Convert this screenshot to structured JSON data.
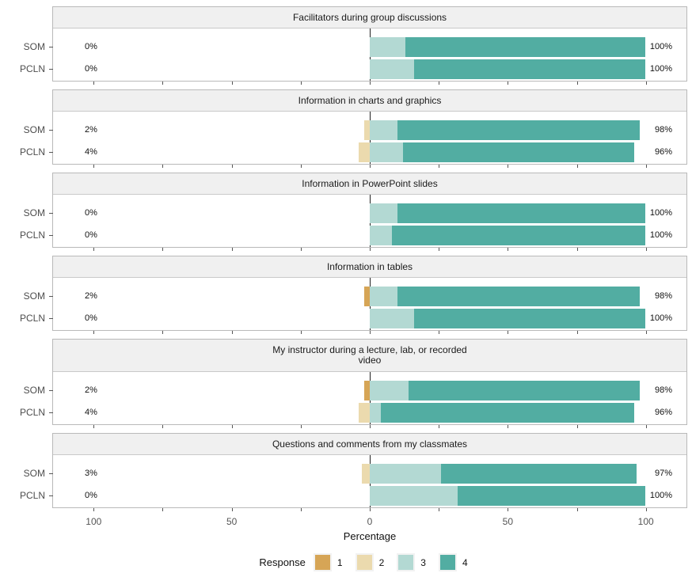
{
  "chart_data": {
    "type": "bar",
    "subtype": "diverging-stacked-likert",
    "orientation": "horizontal",
    "xlabel": "Percentage",
    "xlim": [
      -115,
      115
    ],
    "x_major_ticks": [
      -100,
      -50,
      0,
      50,
      100
    ],
    "x_major_tick_labels": [
      "100",
      "50",
      "0",
      "50",
      "100"
    ],
    "x_minor_tick_step": 25,
    "grid": "off",
    "negative_responses": [
      "1",
      "2"
    ],
    "positive_responses": [
      "3",
      "4"
    ],
    "legend": {
      "title": "Response",
      "position": "bottom",
      "items": [
        {
          "label": "1",
          "color": "#d6a556"
        },
        {
          "label": "2",
          "color": "#ebdaae"
        },
        {
          "label": "3",
          "color": "#b3d9d3"
        },
        {
          "label": "4",
          "color": "#52ada2"
        }
      ]
    },
    "panels": [
      {
        "title": "Facilitators during group discussions",
        "rows": [
          {
            "group": "SOM",
            "left_label": "0%",
            "right_label": "100%",
            "segments": [
              {
                "response": "3",
                "value": 13
              },
              {
                "response": "4",
                "value": 87
              }
            ]
          },
          {
            "group": "PCLN",
            "left_label": "0%",
            "right_label": "100%",
            "segments": [
              {
                "response": "3",
                "value": 16
              },
              {
                "response": "4",
                "value": 84
              }
            ]
          }
        ]
      },
      {
        "title": "Information in charts and graphics",
        "rows": [
          {
            "group": "SOM",
            "left_label": "2%",
            "right_label": "98%",
            "segments": [
              {
                "response": "2",
                "value": 2
              },
              {
                "response": "3",
                "value": 10
              },
              {
                "response": "4",
                "value": 88
              }
            ]
          },
          {
            "group": "PCLN",
            "left_label": "4%",
            "right_label": "96%",
            "segments": [
              {
                "response": "2",
                "value": 4
              },
              {
                "response": "3",
                "value": 12
              },
              {
                "response": "4",
                "value": 84
              }
            ]
          }
        ]
      },
      {
        "title": "Information in PowerPoint slides",
        "rows": [
          {
            "group": "SOM",
            "left_label": "0%",
            "right_label": "100%",
            "segments": [
              {
                "response": "3",
                "value": 10
              },
              {
                "response": "4",
                "value": 90
              }
            ]
          },
          {
            "group": "PCLN",
            "left_label": "0%",
            "right_label": "100%",
            "segments": [
              {
                "response": "3",
                "value": 8
              },
              {
                "response": "4",
                "value": 92
              }
            ]
          }
        ]
      },
      {
        "title": "Information in tables",
        "rows": [
          {
            "group": "SOM",
            "left_label": "2%",
            "right_label": "98%",
            "segments": [
              {
                "response": "1",
                "value": 2
              },
              {
                "response": "3",
                "value": 10
              },
              {
                "response": "4",
                "value": 88
              }
            ]
          },
          {
            "group": "PCLN",
            "left_label": "0%",
            "right_label": "100%",
            "segments": [
              {
                "response": "3",
                "value": 16
              },
              {
                "response": "4",
                "value": 84
              }
            ]
          }
        ]
      },
      {
        "title": "My instructor during a lecture, lab, or recorded\nvideo",
        "rows": [
          {
            "group": "SOM",
            "left_label": "2%",
            "right_label": "98%",
            "segments": [
              {
                "response": "1",
                "value": 2
              },
              {
                "response": "3",
                "value": 14
              },
              {
                "response": "4",
                "value": 84
              }
            ]
          },
          {
            "group": "PCLN",
            "left_label": "4%",
            "right_label": "96%",
            "segments": [
              {
                "response": "2",
                "value": 4
              },
              {
                "response": "3",
                "value": 4
              },
              {
                "response": "4",
                "value": 92
              }
            ]
          }
        ]
      },
      {
        "title": "Questions and comments from my classmates",
        "rows": [
          {
            "group": "SOM",
            "left_label": "3%",
            "right_label": "97%",
            "segments": [
              {
                "response": "2",
                "value": 3
              },
              {
                "response": "3",
                "value": 26
              },
              {
                "response": "4",
                "value": 71
              }
            ]
          },
          {
            "group": "PCLN",
            "left_label": "0%",
            "right_label": "100%",
            "segments": [
              {
                "response": "3",
                "value": 32
              },
              {
                "response": "4",
                "value": 68
              }
            ]
          }
        ]
      }
    ],
    "theme": {
      "strip_bg": "#f0f0f0",
      "panel_border": "#b9b9b9",
      "zero_line": "#222222",
      "tick_color": "#555555",
      "axis_text_color": "#555555",
      "group_label_color": "#4d4d4d",
      "value_label_color": "#111111"
    }
  }
}
